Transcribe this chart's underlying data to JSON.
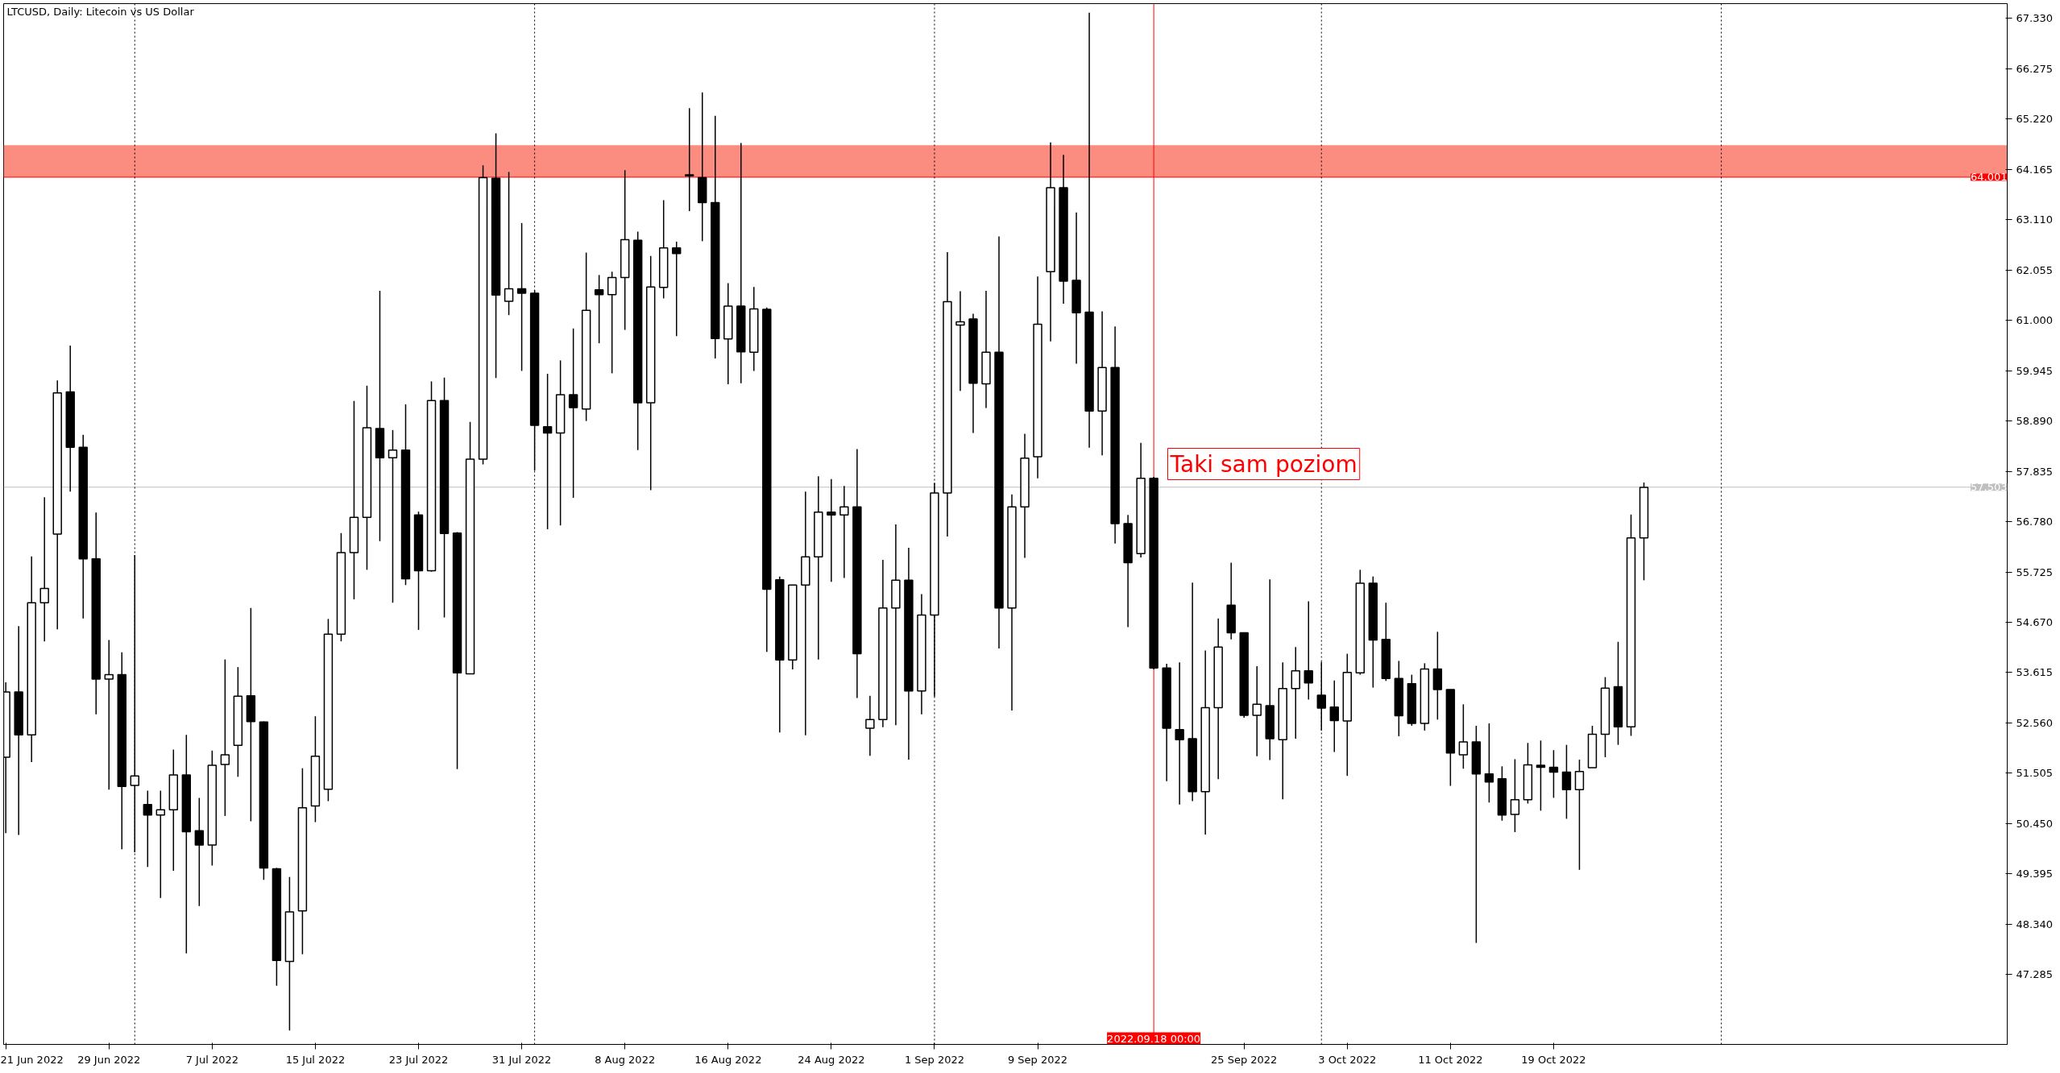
{
  "chart_data": {
    "type": "candlestick",
    "title": "LTCUSD, Daily:  Litecoin vs US Dollar",
    "x": [
      "2022-06-21",
      "2022-06-22",
      "2022-06-23",
      "2022-06-24",
      "2022-06-25",
      "2022-06-26",
      "2022-06-27",
      "2022-06-28",
      "2022-06-29",
      "2022-06-30",
      "2022-07-01",
      "2022-07-02",
      "2022-07-03",
      "2022-07-04",
      "2022-07-05",
      "2022-07-06",
      "2022-07-07",
      "2022-07-08",
      "2022-07-09",
      "2022-07-10",
      "2022-07-11",
      "2022-07-12",
      "2022-07-13",
      "2022-07-14",
      "2022-07-15",
      "2022-07-16",
      "2022-07-17",
      "2022-07-18",
      "2022-07-19",
      "2022-07-20",
      "2022-07-21",
      "2022-07-22",
      "2022-07-23",
      "2022-07-24",
      "2022-07-25",
      "2022-07-26",
      "2022-07-27",
      "2022-07-28",
      "2022-07-29",
      "2022-07-30",
      "2022-07-31",
      "2022-08-01",
      "2022-08-02",
      "2022-08-03",
      "2022-08-04",
      "2022-08-05",
      "2022-08-06",
      "2022-08-07",
      "2022-08-08",
      "2022-08-09",
      "2022-08-10",
      "2022-08-11",
      "2022-08-12",
      "2022-08-13",
      "2022-08-14",
      "2022-08-15",
      "2022-08-16",
      "2022-08-17",
      "2022-08-18",
      "2022-08-19",
      "2022-08-20",
      "2022-08-21",
      "2022-08-22",
      "2022-08-23",
      "2022-08-24",
      "2022-08-25",
      "2022-08-26",
      "2022-08-27",
      "2022-08-28",
      "2022-08-29",
      "2022-08-30",
      "2022-08-31",
      "2022-09-01",
      "2022-09-02",
      "2022-09-03",
      "2022-09-04",
      "2022-09-05",
      "2022-09-06",
      "2022-09-07",
      "2022-09-08",
      "2022-09-09",
      "2022-09-10",
      "2022-09-11",
      "2022-09-12",
      "2022-09-13",
      "2022-09-14",
      "2022-09-15",
      "2022-09-16",
      "2022-09-17",
      "2022-09-18",
      "2022-09-19",
      "2022-09-20",
      "2022-09-21",
      "2022-09-22",
      "2022-09-23",
      "2022-09-24",
      "2022-09-25",
      "2022-09-26",
      "2022-09-27",
      "2022-09-28",
      "2022-09-29",
      "2022-09-30",
      "2022-10-01",
      "2022-10-02",
      "2022-10-03",
      "2022-10-04",
      "2022-10-05",
      "2022-10-06",
      "2022-10-07",
      "2022-10-08",
      "2022-10-09",
      "2022-10-10",
      "2022-10-11",
      "2022-10-12",
      "2022-10-13",
      "2022-10-14",
      "2022-10-15",
      "2022-10-16",
      "2022-10-17",
      "2022-10-18",
      "2022-10-19",
      "2022-10-20",
      "2022-10-21",
      "2022-10-22",
      "2022-10-23",
      "2022-10-24",
      "2022-10-25",
      "2022-10-26"
    ],
    "ohlc": [
      [
        51.84,
        53.41,
        50.25,
        53.21
      ],
      [
        53.21,
        54.59,
        50.21,
        52.31
      ],
      [
        52.31,
        56.05,
        51.74,
        55.08
      ],
      [
        55.08,
        57.29,
        54.27,
        55.38
      ],
      [
        56.52,
        59.74,
        54.52,
        59.48
      ],
      [
        59.5,
        60.47,
        57.41,
        58.34
      ],
      [
        58.34,
        58.6,
        54.75,
        56.0
      ],
      [
        56.0,
        56.97,
        52.74,
        53.48
      ],
      [
        53.48,
        54.3,
        51.16,
        53.57
      ],
      [
        53.57,
        54.04,
        49.91,
        51.23
      ],
      [
        51.25,
        56.08,
        49.85,
        51.45
      ],
      [
        50.85,
        51.14,
        49.54,
        50.63
      ],
      [
        50.63,
        51.14,
        48.89,
        50.74
      ],
      [
        50.74,
        52.0,
        49.46,
        51.47
      ],
      [
        51.47,
        52.31,
        47.73,
        50.28
      ],
      [
        50.3,
        50.99,
        48.72,
        50.0
      ],
      [
        50.0,
        51.98,
        49.57,
        51.67
      ],
      [
        51.69,
        53.89,
        50.61,
        51.89
      ],
      [
        52.09,
        53.73,
        51.43,
        53.12
      ],
      [
        53.13,
        54.97,
        50.5,
        52.59
      ],
      [
        52.58,
        52.59,
        49.27,
        49.52
      ],
      [
        49.5,
        49.52,
        47.05,
        47.58
      ],
      [
        47.56,
        49.33,
        46.11,
        48.6
      ],
      [
        48.62,
        51.61,
        47.71,
        50.78
      ],
      [
        50.82,
        52.7,
        50.48,
        51.86
      ],
      [
        51.17,
        54.74,
        50.92,
        54.42
      ],
      [
        54.42,
        56.54,
        54.27,
        56.13
      ],
      [
        56.13,
        59.31,
        55.15,
        56.87
      ],
      [
        56.87,
        59.63,
        55.77,
        58.75
      ],
      [
        58.73,
        61.62,
        56.37,
        58.12
      ],
      [
        58.12,
        58.7,
        55.08,
        58.28
      ],
      [
        58.28,
        59.24,
        55.45,
        55.58
      ],
      [
        56.92,
        56.99,
        54.51,
        55.75
      ],
      [
        55.75,
        59.72,
        55.73,
        59.32
      ],
      [
        59.32,
        59.8,
        54.77,
        56.53
      ],
      [
        56.54,
        56.56,
        51.59,
        53.61
      ],
      [
        53.59,
        58.87,
        53.59,
        58.09
      ],
      [
        58.09,
        64.25,
        57.98,
        63.99
      ],
      [
        63.98,
        64.92,
        59.79,
        61.53
      ],
      [
        61.4,
        64.11,
        61.11,
        61.66
      ],
      [
        61.66,
        63.04,
        59.94,
        61.57
      ],
      [
        61.57,
        61.63,
        57.85,
        58.8
      ],
      [
        58.77,
        59.88,
        56.62,
        58.64
      ],
      [
        58.64,
        60.16,
        56.7,
        59.44
      ],
      [
        59.44,
        60.83,
        57.28,
        59.17
      ],
      [
        59.14,
        62.42,
        58.89,
        61.21
      ],
      [
        61.64,
        61.95,
        60.52,
        61.54
      ],
      [
        61.54,
        62.02,
        59.89,
        61.9
      ],
      [
        61.9,
        64.15,
        60.8,
        62.69
      ],
      [
        62.68,
        62.86,
        58.28,
        59.27
      ],
      [
        59.27,
        62.35,
        57.44,
        61.7
      ],
      [
        61.69,
        63.52,
        61.46,
        62.52
      ],
      [
        62.52,
        62.65,
        60.67,
        62.4
      ],
      [
        64.05,
        65.45,
        63.29,
        64.03
      ],
      [
        63.99,
        65.78,
        62.66,
        63.47
      ],
      [
        63.47,
        65.29,
        60.2,
        60.62
      ],
      [
        60.61,
        61.78,
        59.66,
        61.3
      ],
      [
        61.3,
        64.72,
        59.68,
        60.34
      ],
      [
        60.33,
        61.7,
        59.94,
        61.24
      ],
      [
        61.23,
        61.27,
        54.05,
        55.36
      ],
      [
        55.56,
        55.63,
        52.36,
        53.88
      ],
      [
        53.88,
        55.45,
        53.68,
        55.45
      ],
      [
        55.45,
        57.41,
        52.3,
        56.04
      ],
      [
        56.04,
        57.73,
        53.89,
        56.98
      ],
      [
        56.98,
        57.67,
        55.52,
        56.92
      ],
      [
        56.92,
        57.53,
        55.6,
        57.09
      ],
      [
        57.09,
        58.3,
        53.08,
        54.01
      ],
      [
        52.45,
        53.13,
        51.87,
        52.63
      ],
      [
        52.63,
        55.98,
        52.47,
        54.97
      ],
      [
        54.97,
        56.72,
        52.51,
        55.55
      ],
      [
        55.55,
        56.23,
        51.79,
        53.23
      ],
      [
        53.23,
        55.26,
        52.74,
        54.82
      ],
      [
        54.82,
        57.59,
        53.11,
        57.38
      ],
      [
        57.38,
        62.43,
        56.47,
        61.39
      ],
      [
        60.9,
        61.61,
        59.52,
        60.97
      ],
      [
        61.03,
        61.14,
        58.64,
        59.68
      ],
      [
        59.67,
        61.62,
        59.16,
        60.33
      ],
      [
        60.33,
        62.76,
        54.12,
        54.97
      ],
      [
        54.97,
        57.35,
        52.82,
        57.09
      ],
      [
        57.09,
        58.62,
        56.02,
        58.11
      ],
      [
        58.14,
        61.92,
        57.69,
        60.92
      ],
      [
        62.02,
        64.73,
        60.56,
        63.78
      ],
      [
        63.78,
        64.47,
        61.35,
        61.82
      ],
      [
        61.84,
        63.26,
        60.09,
        61.16
      ],
      [
        61.17,
        67.45,
        58.33,
        59.1
      ],
      [
        59.1,
        61.19,
        58.17,
        60.01
      ],
      [
        60.01,
        60.87,
        56.32,
        56.74
      ],
      [
        56.74,
        56.92,
        54.57,
        55.92
      ],
      [
        56.11,
        58.43,
        56.03,
        57.69
      ],
      [
        57.69,
        57.72,
        53.68,
        53.71
      ],
      [
        53.71,
        53.8,
        51.34,
        52.45
      ],
      [
        52.42,
        53.83,
        50.85,
        52.21
      ],
      [
        52.23,
        55.5,
        50.92,
        51.12
      ],
      [
        51.12,
        54.08,
        50.22,
        52.88
      ],
      [
        52.88,
        54.75,
        51.38,
        54.15
      ],
      [
        55.03,
        55.92,
        54.31,
        54.45
      ],
      [
        54.45,
        54.45,
        52.67,
        52.72
      ],
      [
        52.72,
        53.75,
        51.86,
        52.95
      ],
      [
        52.92,
        55.57,
        51.78,
        52.23
      ],
      [
        52.21,
        53.83,
        50.96,
        53.28
      ],
      [
        53.28,
        54.15,
        52.23,
        53.65
      ],
      [
        53.65,
        55.11,
        53.05,
        53.4
      ],
      [
        53.14,
        53.84,
        52.4,
        52.87
      ],
      [
        52.89,
        53.45,
        51.95,
        52.61
      ],
      [
        52.6,
        54.01,
        51.45,
        53.62
      ],
      [
        53.61,
        55.77,
        53.57,
        55.49
      ],
      [
        55.49,
        55.63,
        53.3,
        54.3
      ],
      [
        54.31,
        55.08,
        53.44,
        53.49
      ],
      [
        53.49,
        53.86,
        52.28,
        52.71
      ],
      [
        53.38,
        53.57,
        52.5,
        52.55
      ],
      [
        52.55,
        53.81,
        52.4,
        53.69
      ],
      [
        53.69,
        54.47,
        52.63,
        53.26
      ],
      [
        53.26,
        53.26,
        51.24,
        51.93
      ],
      [
        51.89,
        52.95,
        51.6,
        52.16
      ],
      [
        52.16,
        52.5,
        47.95,
        51.49
      ],
      [
        51.49,
        52.55,
        50.89,
        51.32
      ],
      [
        51.39,
        51.65,
        50.51,
        50.63
      ],
      [
        50.64,
        51.8,
        50.27,
        50.95
      ],
      [
        50.95,
        52.14,
        50.87,
        51.68
      ],
      [
        51.67,
        52.19,
        50.72,
        51.63
      ],
      [
        51.63,
        51.99,
        50.99,
        51.53
      ],
      [
        51.53,
        52.1,
        50.55,
        51.16
      ],
      [
        51.16,
        51.79,
        49.48,
        51.54
      ],
      [
        51.62,
        52.5,
        51.62,
        52.32
      ],
      [
        52.32,
        53.52,
        51.84,
        53.29
      ],
      [
        53.32,
        54.26,
        52.1,
        52.48
      ],
      [
        52.48,
        56.93,
        52.29,
        56.44
      ],
      [
        56.44,
        57.6,
        55.55,
        57.5
      ]
    ],
    "xlim": [
      "2022-06-20T20:00",
      "2022-11-23T04:00"
    ],
    "xticks": [
      {
        "value": "2022-06-21",
        "label": "21 Jun 2022"
      },
      {
        "value": "2022-06-29",
        "label": "29 Jun 2022"
      },
      {
        "value": "2022-07-07",
        "label": "7 Jul 2022"
      },
      {
        "value": "2022-07-15",
        "label": "15 Jul 2022"
      },
      {
        "value": "2022-07-23",
        "label": "23 Jul 2022"
      },
      {
        "value": "2022-07-31",
        "label": "31 Jul 2022"
      },
      {
        "value": "2022-08-08",
        "label": "8 Aug 2022"
      },
      {
        "value": "2022-08-16",
        "label": "16 Aug 2022"
      },
      {
        "value": "2022-08-24",
        "label": "24 Aug 2022"
      },
      {
        "value": "2022-09-01",
        "label": "1 Sep 2022"
      },
      {
        "value": "2022-09-09",
        "label": "9 Sep 2022"
      },
      {
        "value": "2022-09-25",
        "label": "25 Sep 2022"
      },
      {
        "value": "2022-10-03",
        "label": "3 Oct 2022"
      },
      {
        "value": "2022-10-11",
        "label": "11 Oct 2022"
      },
      {
        "value": "2022-10-19",
        "label": "19 Oct 2022"
      }
    ],
    "ylim": [
      45.82,
      67.64
    ],
    "yticks": [
      {
        "value": 47.285,
        "label": "47.285"
      },
      {
        "value": 48.34,
        "label": "48.340"
      },
      {
        "value": 49.395,
        "label": "49.395"
      },
      {
        "value": 50.45,
        "label": "50.450"
      },
      {
        "value": 51.505,
        "label": "51.505"
      },
      {
        "value": 52.56,
        "label": "52.560"
      },
      {
        "value": 53.615,
        "label": "53.615"
      },
      {
        "value": 54.67,
        "label": "54.670"
      },
      {
        "value": 55.725,
        "label": "55.725"
      },
      {
        "value": 56.78,
        "label": "56.780"
      },
      {
        "value": 57.835,
        "label": "57.835"
      },
      {
        "value": 58.89,
        "label": "58.890"
      },
      {
        "value": 59.945,
        "label": "59.945"
      },
      {
        "value": 61.0,
        "label": "61.000"
      },
      {
        "value": 62.055,
        "label": "62.055"
      },
      {
        "value": 63.11,
        "label": "63.110"
      },
      {
        "value": 64.165,
        "label": "64.165"
      },
      {
        "value": 65.22,
        "label": "65.220"
      },
      {
        "value": 66.275,
        "label": "66.275"
      },
      {
        "value": 67.33,
        "label": "67.330"
      }
    ],
    "bands": [
      {
        "axis": "y",
        "from": 64.001,
        "to": 64.67,
        "color": "#fa8072"
      }
    ],
    "ref_lines": [
      {
        "axis": "y",
        "value": 64.001,
        "label": "64.001",
        "color": "#ff0000",
        "line_style": "solid"
      },
      {
        "axis": "y",
        "value": 57.503,
        "label": "57.503",
        "color": "#c0c0c0",
        "line_style": "solid"
      },
      {
        "axis": "x",
        "value": "2022-09-18",
        "label": "2022.09.18 00:00",
        "color": "#ff0000",
        "line_style": "solid"
      },
      {
        "axis": "x",
        "value": "2022-07-01",
        "color": "#000000",
        "line_style": "dotted"
      },
      {
        "axis": "x",
        "value": "2022-08-01",
        "color": "#000000",
        "line_style": "dotted"
      },
      {
        "axis": "x",
        "value": "2022-09-01",
        "color": "#000000",
        "line_style": "dotted"
      },
      {
        "axis": "x",
        "value": "2022-10-01",
        "color": "#000000",
        "line_style": "dotted"
      },
      {
        "axis": "x",
        "value": "2022-11-01",
        "color": "#000000",
        "line_style": "dotted"
      }
    ],
    "annotations": [
      "Taki sam poziom"
    ]
  }
}
